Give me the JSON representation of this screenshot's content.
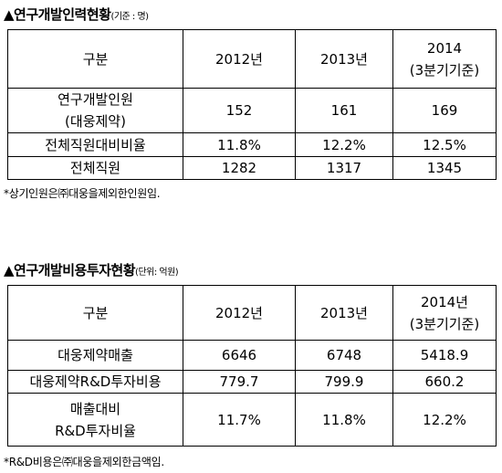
{
  "section1": {
    "title": "▲연구개발인력현황",
    "unit": "(기준 : 명)",
    "table": {
      "rows": [
        [
          "구분",
          "2012년",
          "2013년",
          [
            "2014",
            "(3분기기준)"
          ]
        ],
        [
          [
            "연구개발인원",
            "(대웅제약)"
          ],
          "152",
          "161",
          "169"
        ],
        [
          "전체직원대비비율",
          "11.8%",
          "12.2%",
          "12.5%"
        ],
        [
          "전체직원",
          "1282",
          "1317",
          "1345"
        ]
      ]
    },
    "note": "*상기인원은㈜대웅을제외한인원임."
  },
  "section2": {
    "title": "▲연구개발비용투자현황",
    "unit": "(단위: 억원)",
    "table": {
      "rows": [
        [
          "구분",
          "2012년",
          "2013년",
          [
            "2014년",
            "(3분기기준)"
          ]
        ],
        [
          "대웅제약매출",
          "6646",
          "6748",
          "5418.9"
        ],
        [
          "대웅제약R&D투자비용",
          "779.7",
          "799.9",
          "660.2"
        ],
        [
          [
            "매출대비",
            "R&D투자비율"
          ],
          "11.7%",
          "11.8%",
          "12.2%"
        ]
      ]
    },
    "note": "*R&D비용은㈜대웅을제외한금액임."
  }
}
